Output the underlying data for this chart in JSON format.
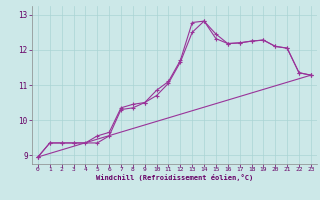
{
  "title": "",
  "xlabel": "Windchill (Refroidissement éolien,°C)",
  "bg_color": "#cce8e8",
  "grid_color": "#aad4d4",
  "line_color": "#993399",
  "text_color": "#660066",
  "xlim": [
    -0.5,
    23.5
  ],
  "ylim": [
    8.75,
    13.25
  ],
  "xticks": [
    0,
    1,
    2,
    3,
    4,
    5,
    6,
    7,
    8,
    9,
    10,
    11,
    12,
    13,
    14,
    15,
    16,
    17,
    18,
    19,
    20,
    21,
    22,
    23
  ],
  "yticks": [
    9,
    10,
    11,
    12,
    13
  ],
  "line1_x": [
    0,
    1,
    2,
    3,
    4,
    5,
    6,
    7,
    8,
    9,
    10,
    11,
    12,
    13,
    14,
    15,
    16,
    17,
    18,
    19,
    20,
    21,
    22,
    23
  ],
  "line1_y": [
    8.95,
    9.35,
    9.35,
    9.35,
    9.35,
    9.55,
    9.65,
    10.35,
    10.45,
    10.5,
    10.85,
    11.1,
    11.7,
    12.78,
    12.82,
    12.45,
    12.18,
    12.2,
    12.25,
    12.28,
    12.1,
    12.05,
    11.35,
    11.28
  ],
  "line2_x": [
    0,
    1,
    2,
    3,
    5,
    6,
    7,
    8,
    9,
    10,
    11,
    12,
    13,
    14,
    15,
    16,
    17,
    18,
    19,
    20,
    21,
    22,
    23
  ],
  "line2_y": [
    8.95,
    9.35,
    9.35,
    9.35,
    9.35,
    9.55,
    10.3,
    10.35,
    10.5,
    10.7,
    11.05,
    11.65,
    12.5,
    12.82,
    12.32,
    12.18,
    12.2,
    12.25,
    12.28,
    12.1,
    12.05,
    11.35,
    11.28
  ],
  "line3_x": [
    0,
    23
  ],
  "line3_y": [
    8.95,
    11.28
  ]
}
